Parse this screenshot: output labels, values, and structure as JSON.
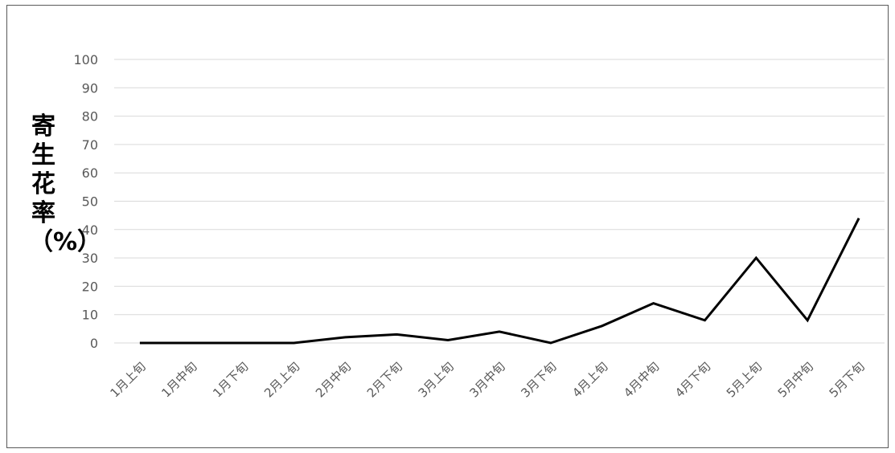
{
  "chart_data": {
    "type": "line",
    "title": "",
    "xlabel": "",
    "ylabel": "寄生花率（%）",
    "ylim": [
      0,
      100
    ],
    "yticks": [
      "0",
      "10",
      "20",
      "30",
      "40",
      "50",
      "60",
      "70",
      "80",
      "90",
      "100"
    ],
    "grid": true,
    "categories": [
      "1月上旬",
      "1月中旬",
      "1月下旬",
      "2月上旬",
      "2月中旬",
      "2月下旬",
      "3月上旬",
      "3月中旬",
      "3月下旬",
      "4月上旬",
      "4月中旬",
      "4月下旬",
      "5月上旬",
      "5月中旬",
      "5月下旬"
    ],
    "series": [
      {
        "values": [
          0,
          0,
          0,
          0,
          2,
          3,
          1,
          4,
          0,
          6,
          14,
          8,
          30,
          8,
          44
        ]
      }
    ],
    "colors": {
      "line": "#000000",
      "grid": "#d9d9d9",
      "tick": "#595959"
    }
  }
}
